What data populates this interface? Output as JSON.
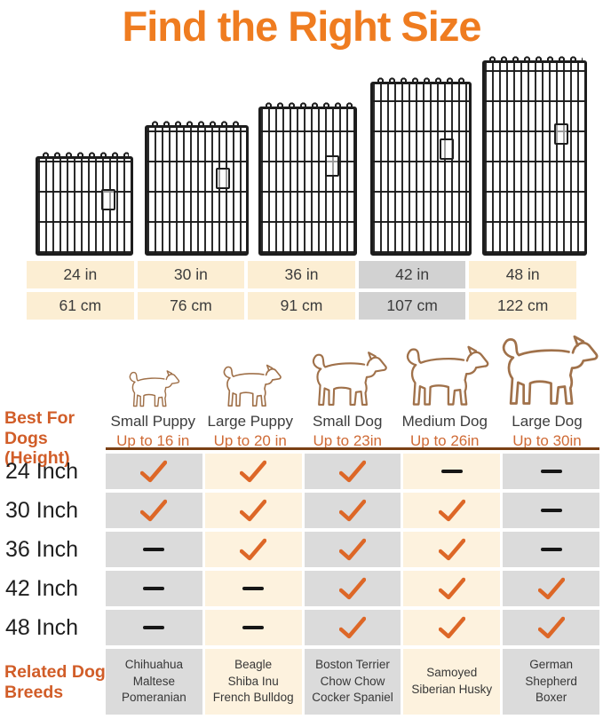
{
  "title": "Find the Right Size",
  "colors": {
    "title_orange": "#ef7c20",
    "header_orange": "#d15d28",
    "upto_orange": "#cf6a35",
    "check_orange": "#dd6727",
    "size_table_cream": "#fceed3",
    "matrix_cream": "#fdf2de",
    "size_table_highlight_gray": "#d2d2d2",
    "matrix_gray": "#dbdbdb",
    "divider_brown": "#7a4014",
    "crate_black": "#1d1d1d"
  },
  "size_table": {
    "sizes": [
      {
        "inches": "24 in",
        "cm": "61 cm",
        "highlight": false
      },
      {
        "inches": "30 in",
        "cm": "76 cm",
        "highlight": false
      },
      {
        "inches": "36 in",
        "cm": "91 cm",
        "highlight": false
      },
      {
        "inches": "42 in",
        "cm": "107 cm",
        "highlight": true
      },
      {
        "inches": "48 in",
        "cm": "122 cm",
        "highlight": false
      }
    ]
  },
  "dog_header": {
    "dogs": [
      {
        "name": "Small Puppy",
        "height": "Up to 16 in"
      },
      {
        "name": "Large Puppy",
        "height": "Up to 20 in"
      },
      {
        "name": "Small Dog",
        "height": "Up to 23in"
      },
      {
        "name": "Medium Dog",
        "height": "Up to 26in"
      },
      {
        "name": "Large Dog",
        "height": "Up to 30in"
      }
    ]
  },
  "left_labels": {
    "best_for": "Best For Dogs\n(Height)",
    "related": "Related Dog\nBreeds"
  },
  "matrix": {
    "rows": [
      {
        "label": "24 Inch",
        "cells": [
          "check",
          "check",
          "check",
          "dash",
          "dash"
        ]
      },
      {
        "label": "30 Inch",
        "cells": [
          "check",
          "check",
          "check",
          "check",
          "dash"
        ]
      },
      {
        "label": "36 Inch",
        "cells": [
          "dash",
          "check",
          "check",
          "check",
          "dash"
        ]
      },
      {
        "label": "42 Inch",
        "cells": [
          "dash",
          "dash",
          "check",
          "check",
          "check"
        ]
      },
      {
        "label": "48 Inch",
        "cells": [
          "dash",
          "dash",
          "check",
          "check",
          "check"
        ]
      }
    ]
  },
  "breeds": [
    "Chihuahua\nMaltese\nPomeranian",
    "Beagle\nShiba Inu\nFrench Bulldog",
    "Boston Terrier\nChow Chow\nCocker Spaniel",
    "Samoyed\nSiberian Husky",
    "German\nShepherd\nBoxer"
  ],
  "chart_data": {
    "type": "table",
    "title": "Find the Right Size",
    "panel_sizes": [
      {
        "inches": 24,
        "cm": 61,
        "highlighted": false
      },
      {
        "inches": 30,
        "cm": 76,
        "highlighted": false
      },
      {
        "inches": 36,
        "cm": 91,
        "highlighted": false
      },
      {
        "inches": 42,
        "cm": 107,
        "highlighted": true
      },
      {
        "inches": 48,
        "cm": 122,
        "highlighted": false
      }
    ],
    "columns": [
      "Small Puppy (Up to 16 in)",
      "Large Puppy (Up to 20 in)",
      "Small Dog (Up to 23in)",
      "Medium Dog (Up to 26in)",
      "Large Dog (Up to 30in)"
    ],
    "row_label_header": "Best For Dogs (Height)",
    "rows": [
      {
        "label": "24 Inch",
        "fits": [
          true,
          true,
          true,
          false,
          false
        ]
      },
      {
        "label": "30 Inch",
        "fits": [
          true,
          true,
          true,
          true,
          false
        ]
      },
      {
        "label": "36 Inch",
        "fits": [
          false,
          true,
          true,
          true,
          false
        ]
      },
      {
        "label": "42 Inch",
        "fits": [
          false,
          false,
          true,
          true,
          true
        ]
      },
      {
        "label": "48 Inch",
        "fits": [
          false,
          false,
          true,
          true,
          true
        ]
      }
    ],
    "related_breeds": [
      [
        "Chihuahua",
        "Maltese",
        "Pomeranian"
      ],
      [
        "Beagle",
        "Shiba Inu",
        "French Bulldog"
      ],
      [
        "Boston Terrier",
        "Chow Chow",
        "Cocker Spaniel"
      ],
      [
        "Samoyed",
        "Siberian Husky"
      ],
      [
        "German Shepherd",
        "Boxer"
      ]
    ],
    "legend": {
      "check": "suitable",
      "dash": "not suitable"
    }
  }
}
